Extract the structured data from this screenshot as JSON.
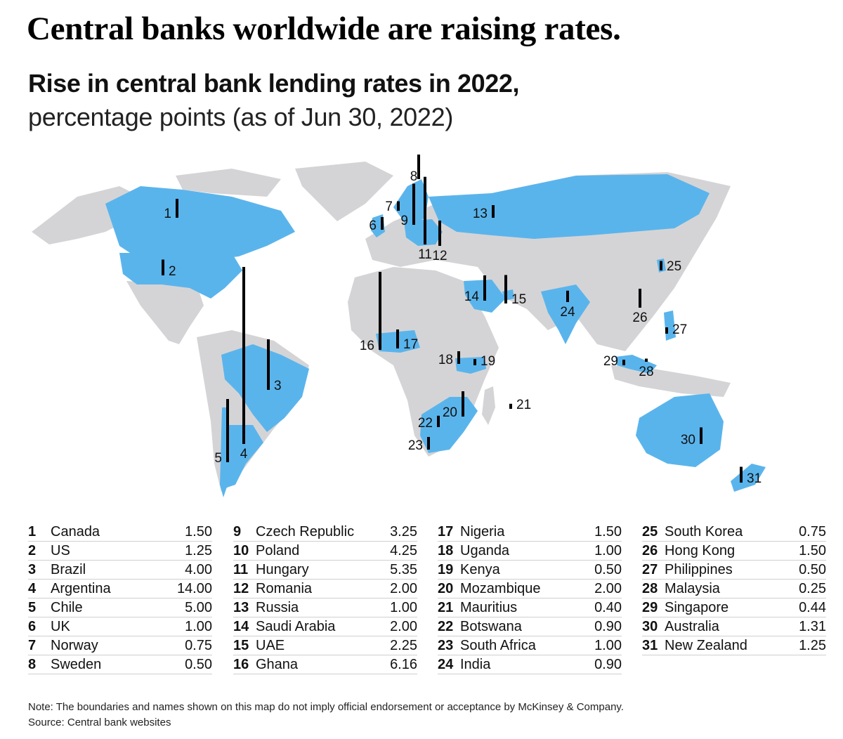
{
  "header": {
    "title": "Central banks worldwide are raising rates.",
    "subtitle_bold": "Rise in central bank lending rates in 2022,",
    "subtitle_light": "percentage points (as of Jun 30, 2022)"
  },
  "colors": {
    "highlight": "#5ab4ec",
    "land": "#d4d4d6",
    "bar": "#000000",
    "divider": "#cfcfcf"
  },
  "countries": [
    {
      "num": "1",
      "name": "Canada",
      "value": "1.50"
    },
    {
      "num": "2",
      "name": "US",
      "value": "1.25"
    },
    {
      "num": "3",
      "name": "Brazil",
      "value": "4.00"
    },
    {
      "num": "4",
      "name": "Argentina",
      "value": "14.00"
    },
    {
      "num": "5",
      "name": "Chile",
      "value": "5.00"
    },
    {
      "num": "6",
      "name": "UK",
      "value": "1.00"
    },
    {
      "num": "7",
      "name": "Norway",
      "value": "0.75"
    },
    {
      "num": "8",
      "name": "Sweden",
      "value": "0.50"
    },
    {
      "num": "9",
      "name": "Czech Republic",
      "value": "3.25"
    },
    {
      "num": "10",
      "name": "Poland",
      "value": "4.25"
    },
    {
      "num": "11",
      "name": "Hungary",
      "value": "5.35"
    },
    {
      "num": "12",
      "name": "Romania",
      "value": "2.00"
    },
    {
      "num": "13",
      "name": "Russia",
      "value": "1.00"
    },
    {
      "num": "14",
      "name": "Saudi Arabia",
      "value": "2.00"
    },
    {
      "num": "15",
      "name": "UAE",
      "value": "2.25"
    },
    {
      "num": "16",
      "name": "Ghana",
      "value": "6.16"
    },
    {
      "num": "17",
      "name": "Nigeria",
      "value": "1.50"
    },
    {
      "num": "18",
      "name": "Uganda",
      "value": "1.00"
    },
    {
      "num": "19",
      "name": "Kenya",
      "value": "0.50"
    },
    {
      "num": "20",
      "name": "Mozambique",
      "value": "2.00"
    },
    {
      "num": "21",
      "name": "Mauritius",
      "value": "0.40"
    },
    {
      "num": "22",
      "name": "Botswana",
      "value": "0.90"
    },
    {
      "num": "23",
      "name": "South Africa",
      "value": "1.00"
    },
    {
      "num": "24",
      "name": "India",
      "value": "0.90"
    },
    {
      "num": "25",
      "name": "South Korea",
      "value": "0.75"
    },
    {
      "num": "26",
      "name": "Hong Kong",
      "value": "1.50"
    },
    {
      "num": "27",
      "name": "Philippines",
      "value": "0.50"
    },
    {
      "num": "28",
      "name": "Malaysia",
      "value": "0.25"
    },
    {
      "num": "29",
      "name": "Singapore",
      "value": "0.44"
    },
    {
      "num": "30",
      "name": "Australia",
      "value": "1.31"
    },
    {
      "num": "31",
      "name": "New Zealand",
      "value": "1.25"
    }
  ],
  "footer": {
    "note": "Note: The boundaries and names shown on this map do not imply official endorsement or acceptance by McKinsey & Company.",
    "source": "Source: Central bank websites"
  }
}
